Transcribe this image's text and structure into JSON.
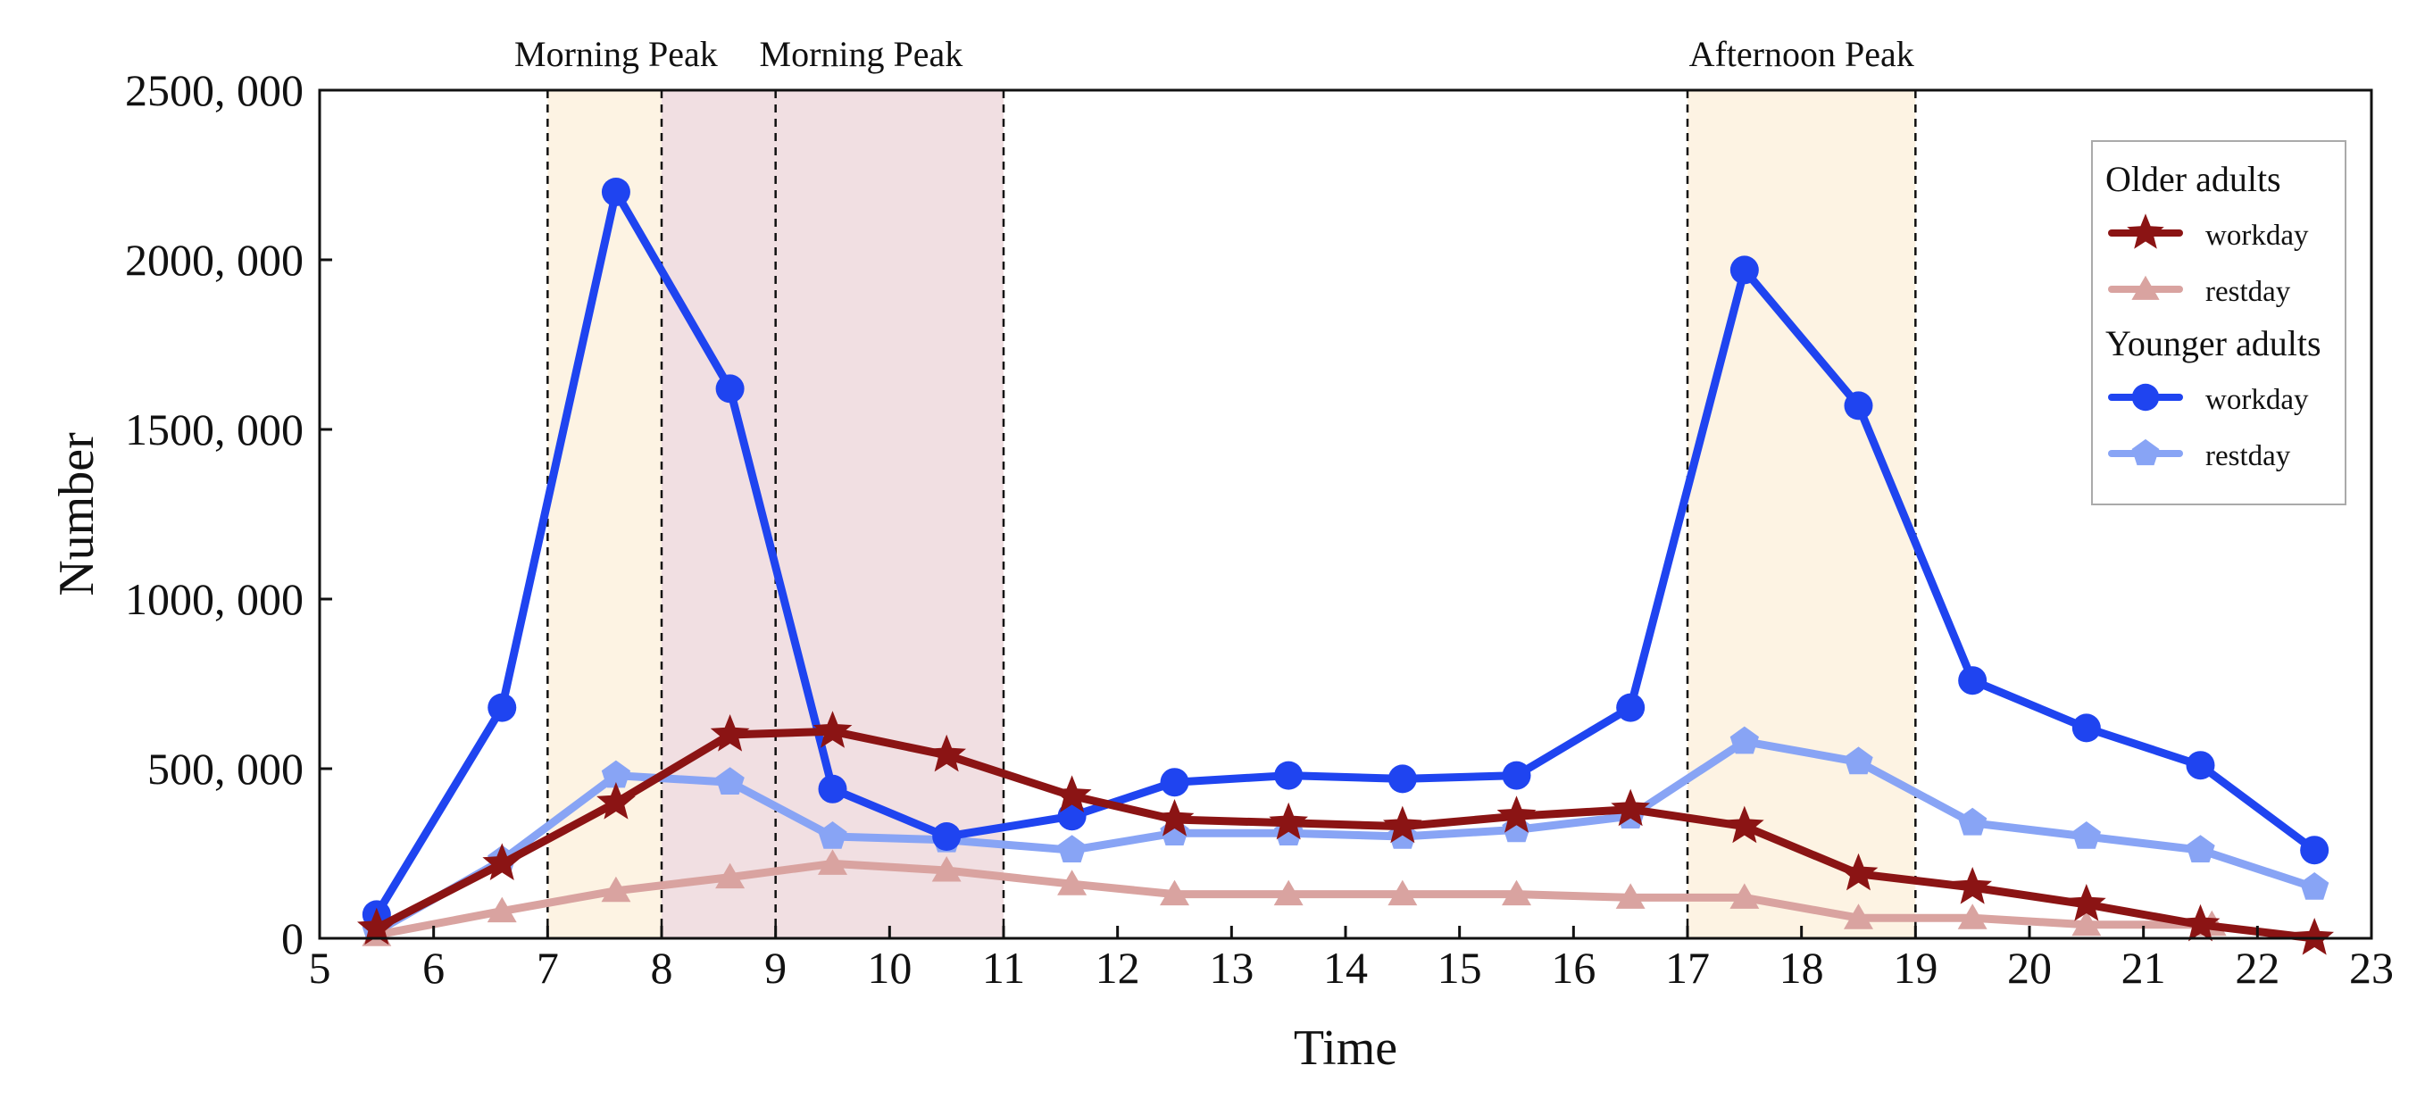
{
  "chart_data": {
    "type": "line",
    "xlabel": "Time",
    "ylabel": "Number",
    "xlim": [
      5,
      23
    ],
    "ylim": [
      0,
      2500000
    ],
    "x_ticks": [
      5,
      6,
      7,
      8,
      9,
      10,
      11,
      12,
      13,
      14,
      15,
      16,
      17,
      18,
      19,
      20,
      21,
      22,
      23
    ],
    "x_tick_labels": [
      "5",
      "6",
      "7",
      "8",
      "9",
      "10",
      "11",
      "12",
      "13",
      "14",
      "15",
      "16",
      "17",
      "18",
      "19",
      "20",
      "21",
      "22",
      "23"
    ],
    "y_ticks": [
      0,
      500000,
      1000000,
      1500000,
      2000000,
      2500000
    ],
    "y_tick_labels": [
      "0",
      "500, 000",
      "1000, 000",
      "1500, 000",
      "2000, 000",
      "2500, 000"
    ],
    "grid": false,
    "legend_position": "top-right",
    "shaded_bands": [
      {
        "label": "Morning Peak",
        "start": 7,
        "end": 8,
        "color": "#fdf3e3",
        "group": "Younger adults"
      },
      {
        "label": "Morning Peak",
        "start": 8,
        "end": 11,
        "color": "#f1dfe2",
        "group": "Older adults"
      },
      {
        "label": "Afternoon Peak",
        "start": 17,
        "end": 19,
        "color": "#fdf3e3",
        "group": "Younger adults"
      }
    ],
    "band_labels": [
      {
        "text": "Morning Peak",
        "center_x": 7.6
      },
      {
        "text": "Morning Peak",
        "center_x": 9.75
      },
      {
        "text": "Afternoon Peak",
        "center_x": 18
      }
    ],
    "dashed_lines_x": [
      7,
      8,
      9,
      11,
      17,
      19
    ],
    "legend": [
      {
        "group": "Older adults",
        "entries": [
          {
            "series": "older_workday",
            "label": "workday"
          },
          {
            "series": "older_restday",
            "label": "restday"
          }
        ]
      },
      {
        "group": "Younger adults",
        "entries": [
          {
            "series": "younger_workday",
            "label": "workday"
          },
          {
            "series": "younger_restday",
            "label": "restday"
          }
        ]
      }
    ],
    "series": [
      {
        "id": "younger_restday",
        "group": "Younger adults",
        "name": "restday",
        "color": "#88a4f5",
        "marker": "pentagon",
        "x": [
          5.5,
          6.6,
          7.6,
          8.6,
          9.5,
          10.5,
          11.6,
          12.5,
          13.5,
          14.5,
          15.5,
          16.5,
          17.5,
          18.5,
          19.5,
          20.5,
          21.5,
          22.5
        ],
        "values": [
          20000,
          230000,
          480000,
          460000,
          300000,
          290000,
          260000,
          310000,
          310000,
          300000,
          320000,
          360000,
          580000,
          520000,
          340000,
          300000,
          260000,
          150000
        ]
      },
      {
        "id": "older_restday",
        "group": "Older adults",
        "name": "restday",
        "color": "#d9a3a0",
        "marker": "triangle",
        "x": [
          5.5,
          6.6,
          7.6,
          8.6,
          9.5,
          10.5,
          11.6,
          12.5,
          13.5,
          14.5,
          15.5,
          16.5,
          17.5,
          18.5,
          19.5,
          20.5,
          21.6
        ],
        "values": [
          10000,
          80000,
          140000,
          180000,
          220000,
          200000,
          160000,
          130000,
          130000,
          130000,
          130000,
          120000,
          120000,
          60000,
          60000,
          40000,
          40000
        ]
      },
      {
        "id": "younger_workday",
        "group": "Younger adults",
        "name": "workday",
        "color": "#1f44f0",
        "marker": "circle",
        "x": [
          5.5,
          6.6,
          7.6,
          8.6,
          9.5,
          10.5,
          11.6,
          12.5,
          13.5,
          14.5,
          15.5,
          16.5,
          17.5,
          18.5,
          19.5,
          20.5,
          21.5,
          22.5
        ],
        "values": [
          70000,
          680000,
          2200000,
          1620000,
          440000,
          300000,
          360000,
          460000,
          480000,
          470000,
          480000,
          680000,
          1970000,
          1570000,
          760000,
          620000,
          510000,
          260000
        ]
      },
      {
        "id": "older_workday",
        "group": "Older adults",
        "name": "workday",
        "color": "#8b1414",
        "marker": "star",
        "x": [
          5.5,
          6.6,
          7.6,
          8.6,
          9.5,
          10.5,
          11.6,
          12.5,
          13.5,
          14.5,
          15.5,
          16.5,
          17.5,
          18.5,
          19.5,
          20.5,
          21.5,
          22.5
        ],
        "values": [
          30000,
          220000,
          400000,
          600000,
          610000,
          540000,
          420000,
          350000,
          340000,
          330000,
          360000,
          380000,
          330000,
          190000,
          150000,
          100000,
          40000,
          0
        ]
      }
    ]
  }
}
